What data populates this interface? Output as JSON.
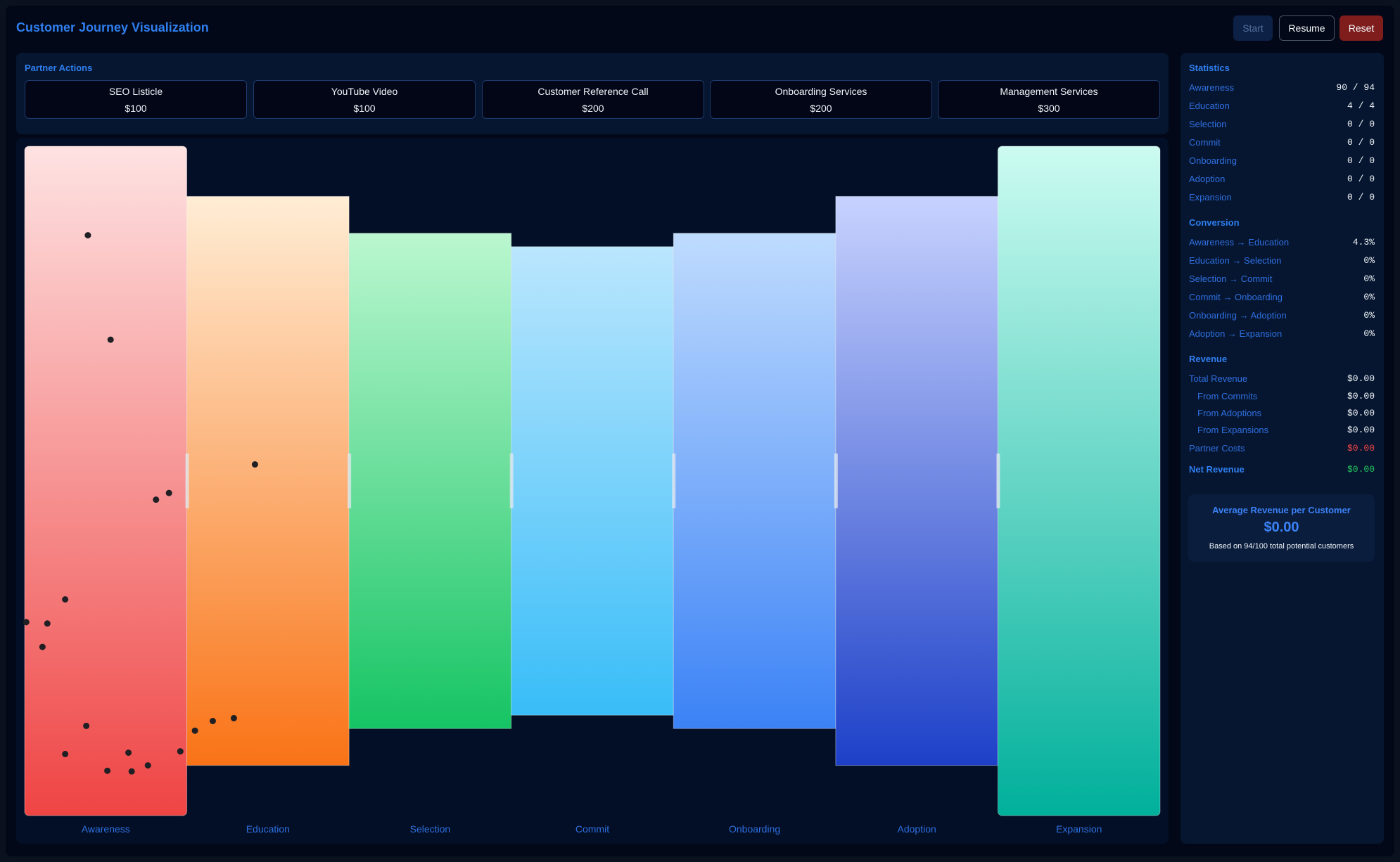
{
  "app": {
    "title": "Customer Journey Visualization",
    "buttons": {
      "start": "Start",
      "resume": "Resume",
      "reset": "Reset"
    }
  },
  "partner_actions": {
    "title": "Partner Actions",
    "items": [
      {
        "name": "SEO Listicle",
        "cost": "$100"
      },
      {
        "name": "YouTube Video",
        "cost": "$100"
      },
      {
        "name": "Customer Reference Call",
        "cost": "$200"
      },
      {
        "name": "Onboarding Services",
        "cost": "$200"
      },
      {
        "name": "Management Services",
        "cost": "$300"
      }
    ]
  },
  "stages": [
    {
      "name": "Awareness",
      "height": 1.0,
      "colors": [
        "#fee2e2",
        "#ef4444"
      ]
    },
    {
      "name": "Education",
      "height": 0.85,
      "colors": [
        "#ffedd5",
        "#f97316"
      ]
    },
    {
      "name": "Selection",
      "height": 0.74,
      "colors": [
        "#bbf7d0",
        "#16c464"
      ]
    },
    {
      "name": "Commit",
      "height": 0.7,
      "colors": [
        "#bae6fd",
        "#38bdf8"
      ]
    },
    {
      "name": "Onboarding",
      "height": 0.74,
      "colors": [
        "#bfdbfe",
        "#3b82f6"
      ]
    },
    {
      "name": "Adoption",
      "height": 0.85,
      "colors": [
        "#c7d2fe",
        "#1d40c8"
      ]
    },
    {
      "name": "Expansion",
      "height": 1.0,
      "colors": [
        "#ccfbf1",
        "#00b09b"
      ]
    }
  ],
  "statistics": {
    "title": "Statistics",
    "rows": [
      {
        "label": "Awareness",
        "value": "90 / 94"
      },
      {
        "label": "Education",
        "value": "4 / 4"
      },
      {
        "label": "Selection",
        "value": "0 / 0"
      },
      {
        "label": "Commit",
        "value": "0 / 0"
      },
      {
        "label": "Onboarding",
        "value": "0 / 0"
      },
      {
        "label": "Adoption",
        "value": "0 / 0"
      },
      {
        "label": "Expansion",
        "value": "0 / 0"
      }
    ]
  },
  "conversion": {
    "title": "Conversion",
    "rows": [
      {
        "label": "Awareness → Education",
        "value": "4.3%"
      },
      {
        "label": "Education → Selection",
        "value": "0%"
      },
      {
        "label": "Selection → Commit",
        "value": "0%"
      },
      {
        "label": "Commit → Onboarding",
        "value": "0%"
      },
      {
        "label": "Onboarding → Adoption",
        "value": "0%"
      },
      {
        "label": "Adoption → Expansion",
        "value": "0%"
      }
    ]
  },
  "revenue": {
    "title": "Revenue",
    "total_label": "Total Revenue",
    "total_value": "$0.00",
    "from_commits_label": "From Commits",
    "from_commits_value": "$0.00",
    "from_adoptions_label": "From Adoptions",
    "from_adoptions_value": "$0.00",
    "from_expansions_label": "From Expansions",
    "from_expansions_value": "$0.00",
    "partner_costs_label": "Partner Costs",
    "partner_costs_value": "$0.00",
    "net_label": "Net Revenue",
    "net_value": "$0.00"
  },
  "average": {
    "title": "Average Revenue per Customer",
    "value": "$0.00",
    "note": "Based on 94/100 total potential customers"
  },
  "customers": [
    {
      "stage": "Awareness",
      "dx": 0.39,
      "dy": 0.133
    },
    {
      "stage": "Awareness",
      "dx": 0.53,
      "dy": 0.289
    },
    {
      "stage": "Awareness",
      "dx": 0.81,
      "dy": 0.528
    },
    {
      "stage": "Awareness",
      "dx": 0.89,
      "dy": 0.518
    },
    {
      "stage": "Awareness",
      "dx": 0.25,
      "dy": 0.677
    },
    {
      "stage": "Awareness",
      "dx": 0.01,
      "dy": 0.711
    },
    {
      "stage": "Awareness",
      "dx": 0.14,
      "dy": 0.713
    },
    {
      "stage": "Awareness",
      "dx": 0.11,
      "dy": 0.748
    },
    {
      "stage": "Awareness",
      "dx": 0.38,
      "dy": 0.866
    },
    {
      "stage": "Awareness",
      "dx": 0.25,
      "dy": 0.908
    },
    {
      "stage": "Awareness",
      "dx": 0.64,
      "dy": 0.906
    },
    {
      "stage": "Awareness",
      "dx": 0.96,
      "dy": 0.904
    },
    {
      "stage": "Awareness",
      "dx": 0.76,
      "dy": 0.925
    },
    {
      "stage": "Awareness",
      "dx": 0.51,
      "dy": 0.933
    },
    {
      "stage": "Awareness",
      "dx": 0.66,
      "dy": 0.934
    },
    {
      "stage": "Education",
      "dx": 0.42,
      "dy": 0.471
    },
    {
      "stage": "Education",
      "dx": 0.16,
      "dy": 0.922
    },
    {
      "stage": "Education",
      "dx": 0.29,
      "dy": 0.917
    },
    {
      "stage": "Education",
      "dx": 0.05,
      "dy": 0.939
    }
  ]
}
